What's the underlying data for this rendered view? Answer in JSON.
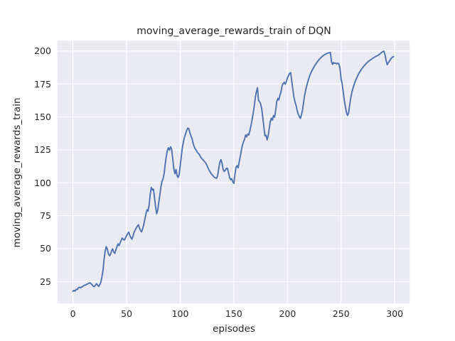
{
  "figure": {
    "title": "moving_average_rewards_train of DQN",
    "xlabel": "episodes",
    "ylabel": "moving_average_rewards_train"
  },
  "colors": {
    "figure_background": "#ffffff",
    "axes_background": "#eaeaf2",
    "gridline": "#ffffff",
    "line": "#4c72b0",
    "text": "#262626"
  },
  "chart_data": {
    "type": "line",
    "title": "moving_average_rewards_train of DQN",
    "xlabel": "episodes",
    "ylabel": "moving_average_rewards_train",
    "x_ticks": [
      0,
      50,
      100,
      150,
      200,
      250,
      300
    ],
    "y_ticks": [
      25,
      50,
      75,
      100,
      125,
      150,
      175,
      200
    ],
    "xlim": [
      -14.6,
      313.9
    ],
    "ylim": [
      8.4,
      207.6
    ],
    "grid": true,
    "legend": "none",
    "line_color": "#4c72b0",
    "series": [
      {
        "name": "moving_average_rewards_train",
        "points": [
          [
            0,
            17.6
          ],
          [
            1,
            18.4
          ],
          [
            2,
            17.7
          ],
          [
            3,
            19.2
          ],
          [
            4,
            18.9
          ],
          [
            5,
            20.2
          ],
          [
            6,
            20.7
          ],
          [
            7,
            20.2
          ],
          [
            8,
            20.9
          ],
          [
            9,
            21.1
          ],
          [
            10,
            21.8
          ],
          [
            11,
            22.3
          ],
          [
            12,
            22.4
          ],
          [
            13,
            23.0
          ],
          [
            14,
            23.4
          ],
          [
            15,
            23.7
          ],
          [
            16,
            24.1
          ],
          [
            17,
            23.2
          ],
          [
            18,
            22.4
          ],
          [
            19,
            21.4
          ],
          [
            20,
            21.2
          ],
          [
            21,
            22.3
          ],
          [
            22,
            23.4
          ],
          [
            23,
            22.2
          ],
          [
            24,
            21.3
          ],
          [
            25,
            22.7
          ],
          [
            26,
            24.6
          ],
          [
            27,
            28.5
          ],
          [
            28,
            33.5
          ],
          [
            29,
            42.0
          ],
          [
            30,
            48.0
          ],
          [
            31,
            51.5
          ],
          [
            32,
            49.8
          ],
          [
            33,
            46.3
          ],
          [
            34,
            44.6
          ],
          [
            35,
            45.6
          ],
          [
            36,
            48.2
          ],
          [
            37,
            49.8
          ],
          [
            38,
            47.4
          ],
          [
            39,
            46.4
          ],
          [
            40,
            49.0
          ],
          [
            41,
            51.5
          ],
          [
            42,
            53.5
          ],
          [
            43,
            52.3
          ],
          [
            44,
            54.5
          ],
          [
            45,
            56.2
          ],
          [
            46,
            58.0
          ],
          [
            47,
            57.0
          ],
          [
            48,
            56.5
          ],
          [
            49,
            58.2
          ],
          [
            50,
            59.9
          ],
          [
            51,
            61.4
          ],
          [
            52,
            62.5
          ],
          [
            53,
            60.0
          ],
          [
            54,
            58.2
          ],
          [
            55,
            57.2
          ],
          [
            56,
            59.5
          ],
          [
            57,
            62.4
          ],
          [
            58,
            64.1
          ],
          [
            59,
            65.5
          ],
          [
            60,
            67.0
          ],
          [
            61,
            68.1
          ],
          [
            62,
            65.6
          ],
          [
            63,
            63.6
          ],
          [
            64,
            62.7
          ],
          [
            65,
            65.2
          ],
          [
            66,
            68.2
          ],
          [
            67,
            72.0
          ],
          [
            68,
            76.0
          ],
          [
            69,
            79.5
          ],
          [
            70,
            78.5
          ],
          [
            71,
            83.0
          ],
          [
            72,
            91.0
          ],
          [
            73,
            96.5
          ],
          [
            74,
            94.5
          ],
          [
            75,
            95.2
          ],
          [
            76,
            89.0
          ],
          [
            77,
            82.0
          ],
          [
            78,
            76.5
          ],
          [
            79,
            79.0
          ],
          [
            80,
            85.0
          ],
          [
            81,
            90.5
          ],
          [
            82,
            96.5
          ],
          [
            83,
            101.0
          ],
          [
            84,
            103.0
          ],
          [
            85,
            107.0
          ],
          [
            86,
            114.0
          ],
          [
            87,
            120.0
          ],
          [
            88,
            124.5
          ],
          [
            89,
            126.5
          ],
          [
            90,
            124.7
          ],
          [
            91,
            127.2
          ],
          [
            92,
            125.5
          ],
          [
            93,
            118.5
          ],
          [
            94,
            111.0
          ],
          [
            95,
            106.8
          ],
          [
            96,
            110.0
          ],
          [
            97,
            105.5
          ],
          [
            98,
            104.0
          ],
          [
            99,
            106.0
          ],
          [
            100,
            113.0
          ],
          [
            101,
            120.0
          ],
          [
            102,
            126.5
          ],
          [
            103,
            131.0
          ],
          [
            104,
            134.6
          ],
          [
            105,
            137.0
          ],
          [
            106,
            139.5
          ],
          [
            107,
            141.5
          ],
          [
            108,
            141.0
          ],
          [
            109,
            138.0
          ],
          [
            110,
            135.5
          ],
          [
            111,
            133.5
          ],
          [
            112,
            130.0
          ],
          [
            113,
            127.4
          ],
          [
            114,
            125.6
          ],
          [
            115,
            124.7
          ],
          [
            116,
            123.0
          ],
          [
            117,
            122.2
          ],
          [
            118,
            121.2
          ],
          [
            119,
            119.5
          ],
          [
            120,
            118.4
          ],
          [
            121,
            117.5
          ],
          [
            122,
            116.6
          ],
          [
            123,
            115.7
          ],
          [
            124,
            114.8
          ],
          [
            125,
            113.0
          ],
          [
            126,
            111.2
          ],
          [
            127,
            109.4
          ],
          [
            128,
            108.0
          ],
          [
            129,
            106.7
          ],
          [
            130,
            105.8
          ],
          [
            131,
            104.8
          ],
          [
            132,
            104.0
          ],
          [
            133,
            103.6
          ],
          [
            134,
            103.4
          ],
          [
            135,
            105.8
          ],
          [
            136,
            111.2
          ],
          [
            137,
            115.7
          ],
          [
            138,
            117.5
          ],
          [
            139,
            114.8
          ],
          [
            140,
            110.3
          ],
          [
            141,
            108.5
          ],
          [
            142,
            109.4
          ],
          [
            143,
            110.9
          ],
          [
            144,
            110.9
          ],
          [
            145,
            107.6
          ],
          [
            146,
            104.0
          ],
          [
            147,
            102.2
          ],
          [
            148,
            103.0
          ],
          [
            149,
            100.7
          ],
          [
            150,
            99.5
          ],
          [
            151,
            106.0
          ],
          [
            152,
            111.5
          ],
          [
            153,
            113.0
          ],
          [
            154,
            111.3
          ],
          [
            155,
            116.0
          ],
          [
            156,
            120.0
          ],
          [
            157,
            124.5
          ],
          [
            158,
            128.5
          ],
          [
            159,
            131.0
          ],
          [
            160,
            133.0
          ],
          [
            161,
            136.2
          ],
          [
            162,
            134.8
          ],
          [
            163,
            137.0
          ],
          [
            164,
            136.2
          ],
          [
            165,
            139.8
          ],
          [
            166,
            143.5
          ],
          [
            167,
            148.0
          ],
          [
            168,
            152.5
          ],
          [
            169,
            158.0
          ],
          [
            170,
            164.5
          ],
          [
            171,
            169.0
          ],
          [
            172,
            172.0
          ],
          [
            173,
            162.5
          ],
          [
            174,
            161.5
          ],
          [
            175,
            159.8
          ],
          [
            176,
            156.0
          ],
          [
            177,
            149.0
          ],
          [
            178,
            142.0
          ],
          [
            179,
            135.5
          ],
          [
            180,
            136.0
          ],
          [
            181,
            132.5
          ],
          [
            182,
            135.5
          ],
          [
            183,
            141.0
          ],
          [
            184,
            146.5
          ],
          [
            185,
            149.0
          ],
          [
            186,
            147.5
          ],
          [
            187,
            151.0
          ],
          [
            188,
            149.8
          ],
          [
            189,
            155.0
          ],
          [
            190,
            161.5
          ],
          [
            191,
            164.0
          ],
          [
            192,
            162.8
          ],
          [
            193,
            166.5
          ],
          [
            194,
            169.0
          ],
          [
            195,
            173.5
          ],
          [
            196,
            175.2
          ],
          [
            197,
            176.2
          ],
          [
            198,
            174.8
          ],
          [
            199,
            177.0
          ],
          [
            200,
            179.6
          ],
          [
            201,
            181.4
          ],
          [
            202,
            183.0
          ],
          [
            203,
            183.5
          ],
          [
            204,
            177.0
          ],
          [
            205,
            171.0
          ],
          [
            206,
            165.0
          ],
          [
            207,
            161.5
          ],
          [
            208,
            158.8
          ],
          [
            209,
            155.0
          ],
          [
            210,
            152.3
          ],
          [
            211,
            150.2
          ],
          [
            212,
            148.8
          ],
          [
            213,
            151.5
          ],
          [
            214,
            155.0
          ],
          [
            215,
            160.8
          ],
          [
            216,
            166.3
          ],
          [
            217,
            170.4
          ],
          [
            218,
            173.8
          ],
          [
            219,
            176.6
          ],
          [
            220,
            179.4
          ],
          [
            221,
            181.7
          ],
          [
            222,
            183.7
          ],
          [
            223,
            185.4
          ],
          [
            224,
            186.9
          ],
          [
            225,
            188.3
          ],
          [
            226,
            189.6
          ],
          [
            227,
            190.8
          ],
          [
            228,
            191.9
          ],
          [
            229,
            193.0
          ],
          [
            230,
            193.9
          ],
          [
            231,
            194.7
          ],
          [
            232,
            195.5
          ],
          [
            233,
            196.2
          ],
          [
            234,
            196.8
          ],
          [
            235,
            197.3
          ],
          [
            236,
            197.8
          ],
          [
            237,
            198.1
          ],
          [
            238,
            198.4
          ],
          [
            239,
            198.6
          ],
          [
            240,
            198.8
          ],
          [
            241,
            192.0
          ],
          [
            242,
            189.8
          ],
          [
            243,
            191.2
          ],
          [
            244,
            190.5
          ],
          [
            245,
            190.8
          ],
          [
            246,
            190.2
          ],
          [
            247,
            190.8
          ],
          [
            248,
            189.9
          ],
          [
            249,
            186.5
          ],
          [
            250,
            178.6
          ],
          [
            251,
            175.0
          ],
          [
            252,
            168.7
          ],
          [
            253,
            162.4
          ],
          [
            254,
            157.8
          ],
          [
            255,
            153.4
          ],
          [
            256,
            151.0
          ],
          [
            257,
            153.0
          ],
          [
            258,
            159.0
          ],
          [
            259,
            164.5
          ],
          [
            260,
            168.5
          ],
          [
            261,
            171.5
          ],
          [
            262,
            174.2
          ],
          [
            263,
            176.5
          ],
          [
            264,
            178.5
          ],
          [
            265,
            180.4
          ],
          [
            266,
            182.0
          ],
          [
            267,
            183.5
          ],
          [
            268,
            184.9
          ],
          [
            269,
            186.1
          ],
          [
            270,
            187.2
          ],
          [
            271,
            188.3
          ],
          [
            272,
            189.2
          ],
          [
            273,
            190.1
          ],
          [
            274,
            190.9
          ],
          [
            275,
            191.7
          ],
          [
            276,
            192.4
          ],
          [
            277,
            193.0
          ],
          [
            278,
            193.6
          ],
          [
            279,
            194.2
          ],
          [
            280,
            194.7
          ],
          [
            281,
            195.2
          ],
          [
            282,
            195.7
          ],
          [
            283,
            196.1
          ],
          [
            284,
            196.5
          ],
          [
            285,
            196.9
          ],
          [
            286,
            197.6
          ],
          [
            287,
            198.3
          ],
          [
            288,
            199.0
          ],
          [
            289,
            199.5
          ],
          [
            290,
            199.8
          ],
          [
            291,
            196.8
          ],
          [
            292,
            192.5
          ],
          [
            293,
            189.6
          ],
          [
            294,
            191.0
          ],
          [
            295,
            192.3
          ],
          [
            296,
            193.5
          ],
          [
            297,
            194.6
          ],
          [
            298,
            195.3
          ],
          [
            299,
            195.7
          ]
        ]
      }
    ]
  }
}
